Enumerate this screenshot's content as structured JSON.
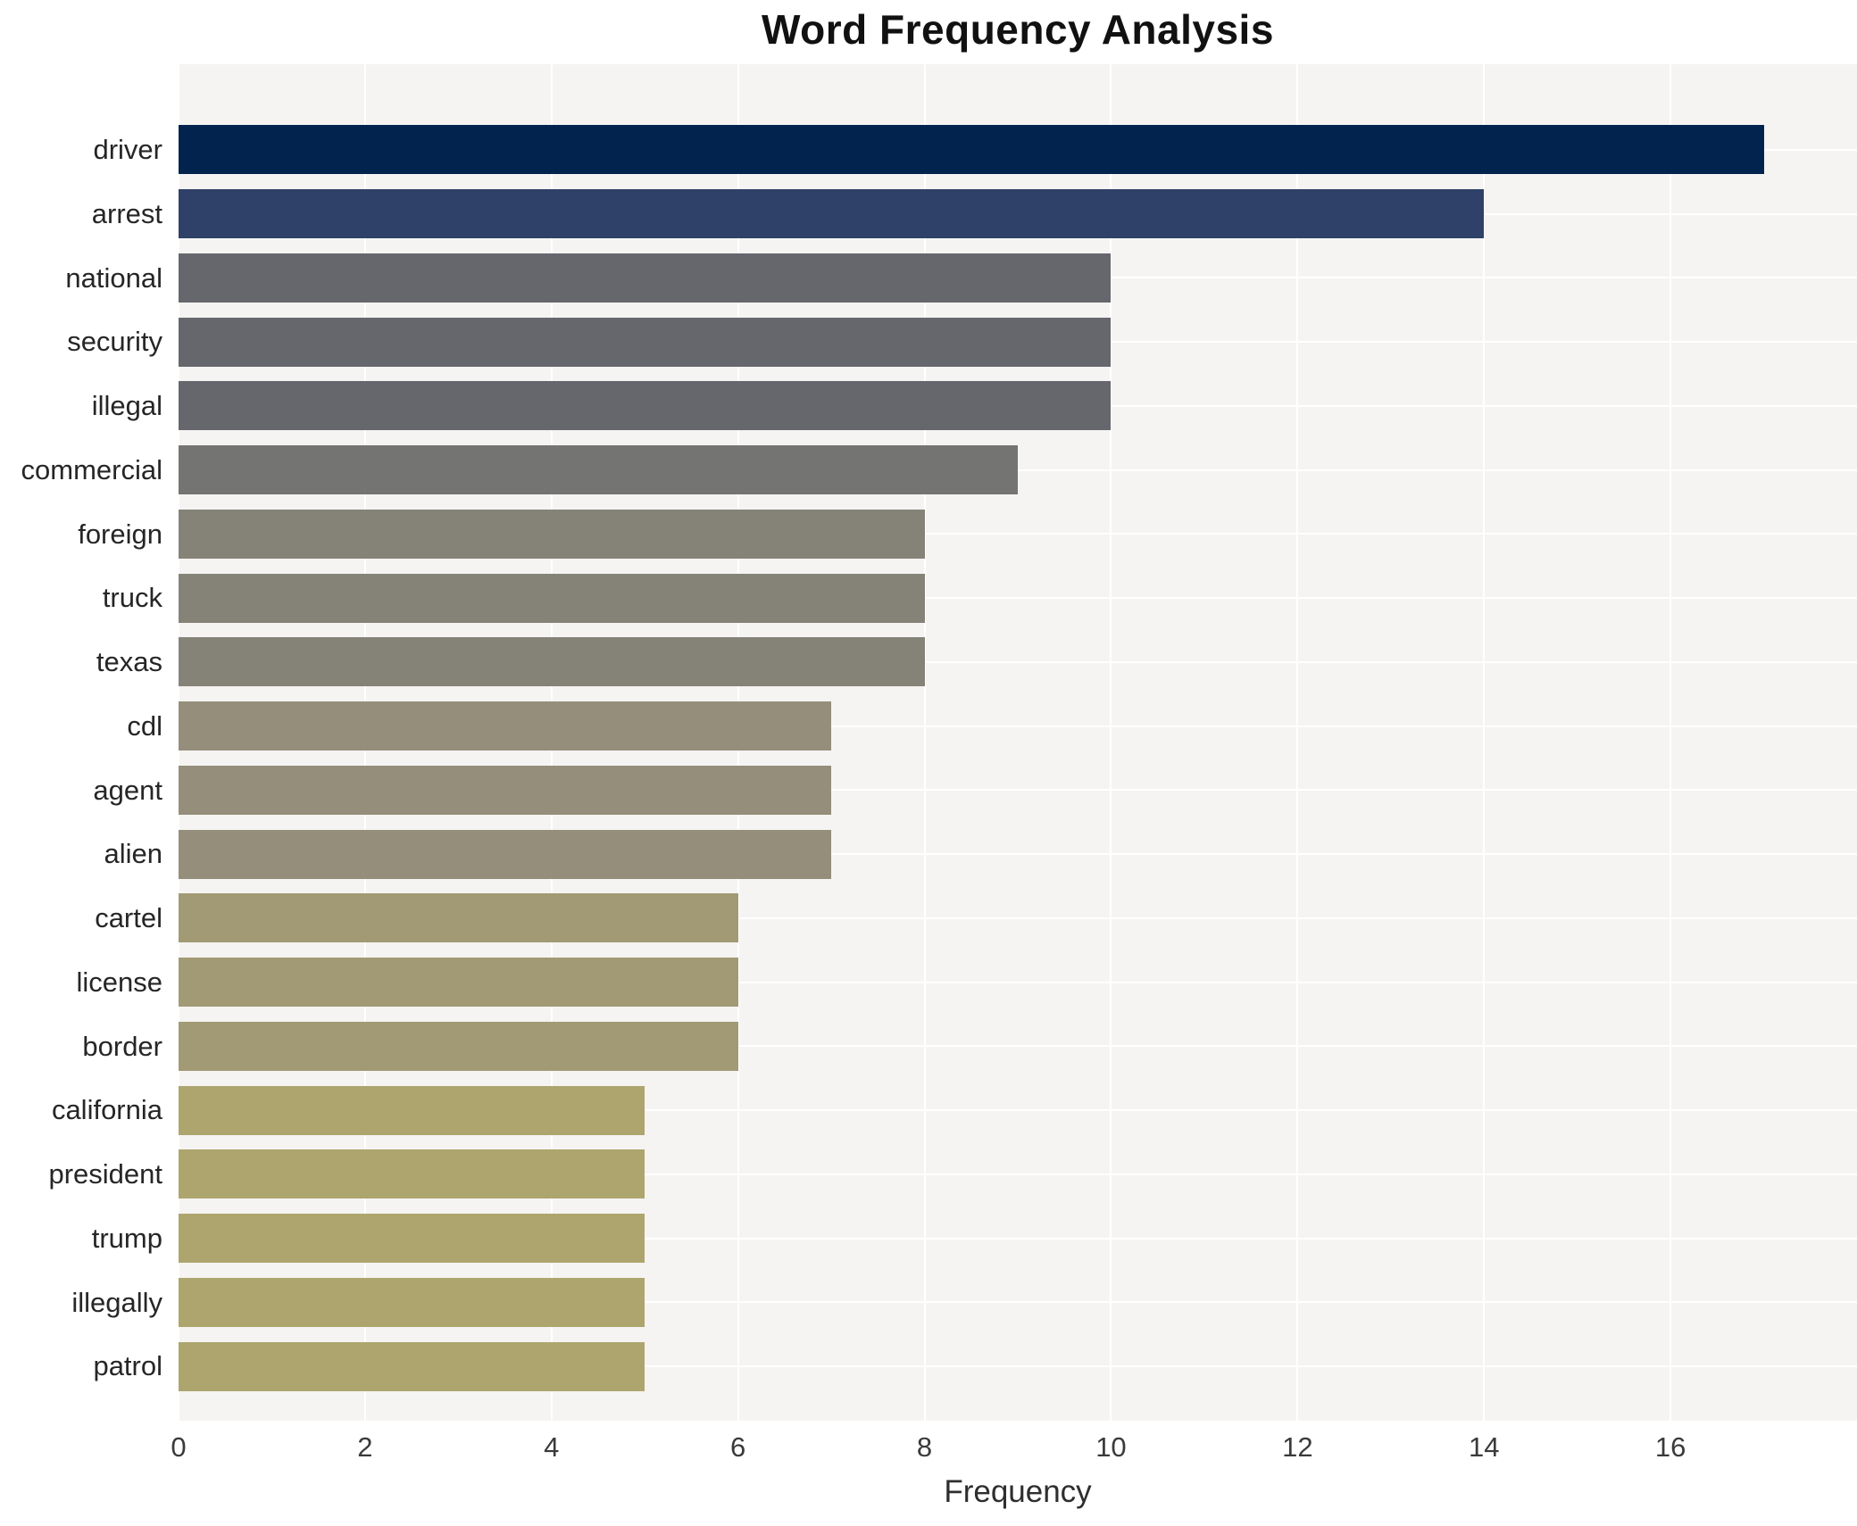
{
  "title": "Word Frequency Analysis",
  "chart_data": {
    "type": "bar",
    "orientation": "horizontal",
    "title": "Word Frequency Analysis",
    "xlabel": "Frequency",
    "ylabel": "",
    "categories": [
      "driver",
      "arrest",
      "national",
      "security",
      "illegal",
      "commercial",
      "foreign",
      "truck",
      "texas",
      "cdl",
      "agent",
      "alien",
      "cartel",
      "license",
      "border",
      "california",
      "president",
      "trump",
      "illegally",
      "patrol"
    ],
    "values": [
      17,
      14,
      10,
      10,
      10,
      9,
      8,
      8,
      8,
      7,
      7,
      7,
      6,
      6,
      6,
      5,
      5,
      5,
      5,
      5
    ],
    "bar_colors": [
      "#02234e",
      "#2f4168",
      "#66676d",
      "#66676d",
      "#66676d",
      "#747472",
      "#858278",
      "#858278",
      "#858278",
      "#948e7b",
      "#948e7b",
      "#948e7b",
      "#a29a74",
      "#a29a74",
      "#a29a74",
      "#ada56d",
      "#ada56d",
      "#ada56d",
      "#ada56d",
      "#ada56d"
    ],
    "xlim": [
      0,
      18
    ],
    "xticks": [
      0,
      2,
      4,
      6,
      8,
      10,
      12,
      14,
      16
    ],
    "grid": true,
    "legend": false,
    "plot_bg_color": "#f5f4f2",
    "grid_color": "#ffffff"
  }
}
